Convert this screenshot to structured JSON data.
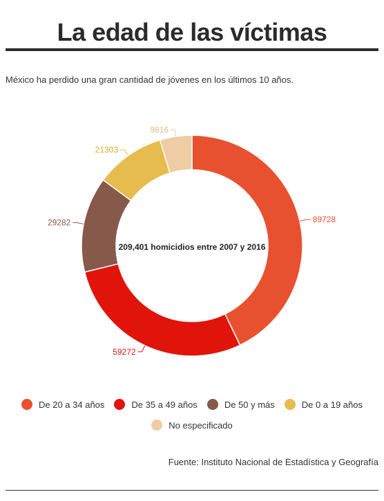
{
  "header": {
    "title": "La edad de las víctimas",
    "subtitle": "México ha perdido una gran cantidad de jóvenes en los últimos 10 años."
  },
  "chart_data": {
    "type": "pie",
    "style": "donut",
    "center_text": "209,401 homicidios entre 2007 y 2016",
    "slices": [
      {
        "label": "De 20 a 34 años",
        "value": 89728,
        "color": "#e8512f"
      },
      {
        "label": "De 35 a 49 años",
        "value": 59272,
        "color": "#e0140b"
      },
      {
        "label": "De 50 y más",
        "value": 29282,
        "color": "#87594a"
      },
      {
        "label": "De 0 a 19 años",
        "value": 21303,
        "color": "#e5bc4d"
      },
      {
        "label": "No especificado",
        "value": 9816,
        "color": "#eecca4"
      }
    ],
    "legend_placement": "bottom"
  },
  "footer": {
    "source": "Fuente: Instituto Nacional de Estadística y Geografía"
  }
}
